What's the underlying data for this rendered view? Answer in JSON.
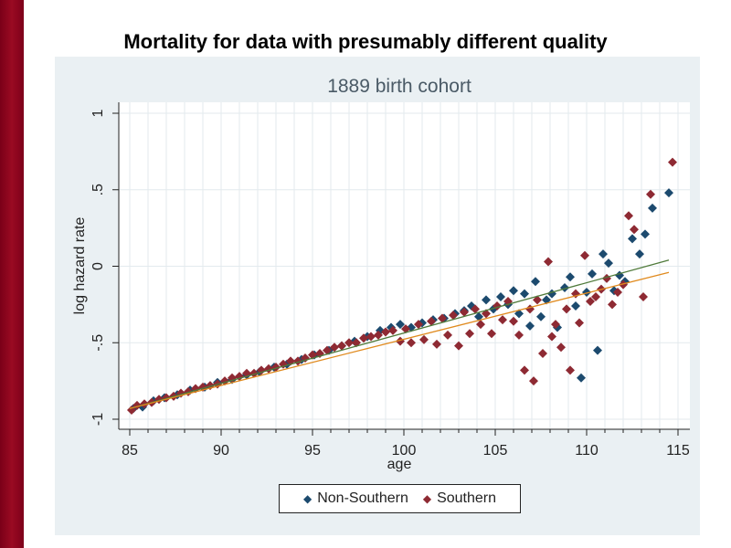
{
  "slide": {
    "title": "Mortality for data with presumably different quality"
  },
  "colors": {
    "side_bar": "#8b0a1e",
    "panel_bg": "#eaf0f3",
    "plot_bg": "#ffffff",
    "grid": "#e3eaee",
    "non_southern": "#1c4a6e",
    "southern": "#8e2a33",
    "fit_non_southern": "#4f7a3a",
    "fit_southern": "#e08a1e"
  },
  "chart_data": {
    "type": "scatter",
    "title": "1889 birth cohort",
    "xlabel": "age",
    "ylabel": "log hazard rate",
    "xlim": [
      84.5,
      115.6
    ],
    "ylim": [
      -1.07,
      1.07
    ],
    "xticks": [
      85,
      90,
      95,
      100,
      105,
      110,
      115
    ],
    "xtick_labels": [
      "85",
      "90",
      "95",
      "100",
      "105",
      "110",
      "115"
    ],
    "yticks": [
      -1,
      -0.5,
      0,
      0.5,
      1
    ],
    "ytick_labels": [
      "-1",
      "-.5",
      "0",
      ".5",
      "1"
    ],
    "grid": true,
    "legend": {
      "placement": "bottom",
      "entries": [
        "Non-Southern",
        "Southern"
      ]
    },
    "series": [
      {
        "name": "Non-Southern",
        "marker": "diamond",
        "points": [
          [
            85.2,
            -0.93
          ],
          [
            85.7,
            -0.92
          ],
          [
            86.3,
            -0.88
          ],
          [
            86.9,
            -0.86
          ],
          [
            87.6,
            -0.84
          ],
          [
            88.3,
            -0.81
          ],
          [
            89.1,
            -0.79
          ],
          [
            89.8,
            -0.76
          ],
          [
            90.6,
            -0.74
          ],
          [
            91.4,
            -0.71
          ],
          [
            92.1,
            -0.69
          ],
          [
            92.9,
            -0.66
          ],
          [
            93.6,
            -0.64
          ],
          [
            94.4,
            -0.61
          ],
          [
            95.1,
            -0.58
          ],
          [
            95.9,
            -0.55
          ],
          [
            96.6,
            -0.52
          ],
          [
            97.3,
            -0.49
          ],
          [
            98.0,
            -0.46
          ],
          [
            98.7,
            -0.42
          ],
          [
            99.3,
            -0.4
          ],
          [
            99.8,
            -0.38
          ],
          [
            100.4,
            -0.4
          ],
          [
            101.0,
            -0.37
          ],
          [
            101.6,
            -0.35
          ],
          [
            102.2,
            -0.34
          ],
          [
            102.8,
            -0.31
          ],
          [
            103.3,
            -0.29
          ],
          [
            103.7,
            -0.26
          ],
          [
            104.1,
            -0.33
          ],
          [
            104.5,
            -0.22
          ],
          [
            104.9,
            -0.28
          ],
          [
            105.3,
            -0.2
          ],
          [
            105.7,
            -0.25
          ],
          [
            106.0,
            -0.16
          ],
          [
            106.3,
            -0.31
          ],
          [
            106.6,
            -0.18
          ],
          [
            106.9,
            -0.39
          ],
          [
            107.2,
            -0.1
          ],
          [
            107.5,
            -0.33
          ],
          [
            107.8,
            -0.22
          ],
          [
            108.1,
            -0.18
          ],
          [
            108.4,
            -0.4
          ],
          [
            108.8,
            -0.14
          ],
          [
            109.1,
            -0.07
          ],
          [
            109.4,
            -0.26
          ],
          [
            109.7,
            -0.73
          ],
          [
            110.0,
            -0.17
          ],
          [
            110.3,
            -0.05
          ],
          [
            110.6,
            -0.55
          ],
          [
            110.9,
            0.08
          ],
          [
            111.2,
            0.02
          ],
          [
            111.5,
            -0.16
          ],
          [
            111.8,
            -0.06
          ],
          [
            112.1,
            -0.1
          ],
          [
            112.5,
            0.18
          ],
          [
            112.9,
            0.08
          ],
          [
            113.2,
            0.21
          ],
          [
            113.6,
            0.38
          ],
          [
            114.5,
            0.48
          ]
        ]
      },
      {
        "name": "Southern",
        "marker": "diamond",
        "points": [
          [
            85.1,
            -0.94
          ],
          [
            85.4,
            -0.91
          ],
          [
            85.8,
            -0.9
          ],
          [
            86.2,
            -0.89
          ],
          [
            86.6,
            -0.87
          ],
          [
            87.0,
            -0.86
          ],
          [
            87.4,
            -0.85
          ],
          [
            87.8,
            -0.83
          ],
          [
            88.2,
            -0.82
          ],
          [
            88.6,
            -0.8
          ],
          [
            89.0,
            -0.79
          ],
          [
            89.4,
            -0.78
          ],
          [
            89.8,
            -0.77
          ],
          [
            90.2,
            -0.75
          ],
          [
            90.6,
            -0.73
          ],
          [
            91.0,
            -0.72
          ],
          [
            91.4,
            -0.7
          ],
          [
            91.8,
            -0.7
          ],
          [
            92.2,
            -0.68
          ],
          [
            92.6,
            -0.67
          ],
          [
            93.0,
            -0.66
          ],
          [
            93.4,
            -0.64
          ],
          [
            93.8,
            -0.62
          ],
          [
            94.2,
            -0.62
          ],
          [
            94.6,
            -0.6
          ],
          [
            95.0,
            -0.58
          ],
          [
            95.4,
            -0.57
          ],
          [
            95.8,
            -0.55
          ],
          [
            96.2,
            -0.53
          ],
          [
            96.6,
            -0.52
          ],
          [
            97.0,
            -0.5
          ],
          [
            97.4,
            -0.5
          ],
          [
            97.8,
            -0.47
          ],
          [
            98.2,
            -0.46
          ],
          [
            98.6,
            -0.45
          ],
          [
            99.0,
            -0.43
          ],
          [
            99.4,
            -0.42
          ],
          [
            99.8,
            -0.49
          ],
          [
            100.1,
            -0.41
          ],
          [
            100.4,
            -0.5
          ],
          [
            100.8,
            -0.38
          ],
          [
            101.1,
            -0.48
          ],
          [
            101.5,
            -0.36
          ],
          [
            101.8,
            -0.51
          ],
          [
            102.1,
            -0.34
          ],
          [
            102.4,
            -0.45
          ],
          [
            102.7,
            -0.32
          ],
          [
            103.0,
            -0.52
          ],
          [
            103.3,
            -0.3
          ],
          [
            103.6,
            -0.44
          ],
          [
            103.9,
            -0.28
          ],
          [
            104.2,
            -0.38
          ],
          [
            104.5,
            -0.31
          ],
          [
            104.8,
            -0.44
          ],
          [
            105.1,
            -0.26
          ],
          [
            105.4,
            -0.35
          ],
          [
            105.7,
            -0.23
          ],
          [
            106.0,
            -0.36
          ],
          [
            106.3,
            -0.45
          ],
          [
            106.6,
            -0.68
          ],
          [
            106.9,
            -0.28
          ],
          [
            107.1,
            -0.75
          ],
          [
            107.3,
            -0.22
          ],
          [
            107.6,
            -0.57
          ],
          [
            107.9,
            0.03
          ],
          [
            108.1,
            -0.46
          ],
          [
            108.3,
            -0.38
          ],
          [
            108.6,
            -0.53
          ],
          [
            108.9,
            -0.28
          ],
          [
            109.1,
            -0.68
          ],
          [
            109.4,
            -0.18
          ],
          [
            109.6,
            -0.37
          ],
          [
            109.9,
            0.07
          ],
          [
            110.2,
            -0.23
          ],
          [
            110.5,
            -0.2
          ],
          [
            110.8,
            -0.15
          ],
          [
            111.1,
            -0.08
          ],
          [
            111.4,
            -0.25
          ],
          [
            111.7,
            -0.17
          ],
          [
            112.0,
            -0.12
          ],
          [
            112.3,
            0.33
          ],
          [
            112.6,
            0.24
          ],
          [
            113.1,
            -0.2
          ],
          [
            113.5,
            0.47
          ],
          [
            114.7,
            0.68
          ]
        ]
      }
    ],
    "fit_lines": [
      {
        "name": "Non-Southern fit",
        "x": [
          85,
          114.5
        ],
        "y": [
          -0.93,
          0.04
        ]
      },
      {
        "name": "Southern fit",
        "x": [
          85,
          114.5
        ],
        "y": [
          -0.93,
          -0.04
        ]
      }
    ]
  }
}
